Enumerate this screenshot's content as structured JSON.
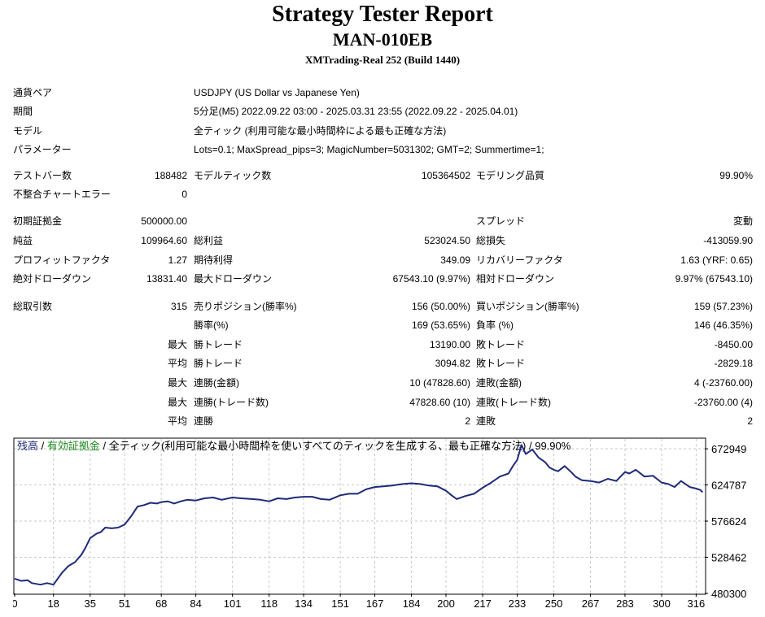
{
  "title": "Strategy Tester Report",
  "expert": "MAN-010EB",
  "build": "XMTrading-Real 252 (Build 1440)",
  "settings": {
    "pair_label": "通貨ペア",
    "pair_value": "USDJPY (US Dollar vs Japanese Yen)",
    "period_label": "期間",
    "period_value": "5分足(M5) 2022.09.22 03:00 - 2025.03.31 23:55 (2022.09.22 - 2025.04.01)",
    "model_label": "モデル",
    "model_value": "全ティック (利用可能な最小時間枠による最も正確な方法)",
    "params_label": "パラメーター",
    "params_value": "Lots=0.1; MaxSpread_pips=3; MagicNumber=5031302; GMT=2; Summertime=1;"
  },
  "stats": {
    "bars_label": "テストバー数",
    "bars": "188482",
    "ticks_label": "モデルティック数",
    "ticks": "105364502",
    "quality_label": "モデリング品質",
    "quality": "99.90%",
    "mismatch_label": "不整合チャートエラー",
    "mismatch": "0",
    "deposit_label": "初期証拠金",
    "deposit": "500000.00",
    "spread_label": "スプレッド",
    "spread": "変動",
    "net_label": "純益",
    "net": "109964.60",
    "gross_profit_label": "総利益",
    "gross_profit": "523024.50",
    "gross_loss_label": "総損失",
    "gross_loss": "-413059.90",
    "pf_label": "プロフィットファクタ",
    "pf": "1.27",
    "expected_label": "期待利得",
    "expected": "349.09",
    "recovery_label": "リカバリーファクタ",
    "recovery": "1.63 (YRF: 0.65)",
    "abs_dd_label": "絶対ドローダウン",
    "abs_dd": "13831.40",
    "max_dd_label": "最大ドローダウン",
    "max_dd": "67543.10 (9.97%)",
    "rel_dd_label": "相対ドローダウン",
    "rel_dd": "9.97% (67543.10)",
    "trades_label": "総取引数",
    "trades": "315",
    "short_label": "売りポジション(勝率%)",
    "short": "156 (50.00%)",
    "long_label": "買いポジション(勝率%)",
    "long": "159 (57.23%)",
    "winrate_label": "勝率(%)",
    "winrate": "169 (53.65%)",
    "lossrate_label": "負率 (%)",
    "lossrate": "146 (46.35%)",
    "max_word": "最大",
    "avg_word": "平均",
    "largest_win_label": "勝トレード",
    "largest_win": "13190.00",
    "largest_loss_label": "敗トレード",
    "largest_loss": "-8450.00",
    "avg_win_label": "勝トレード",
    "avg_win": "3094.82",
    "avg_loss_label": "敗トレード",
    "avg_loss": "-2829.18",
    "cons_win_amt_label": "連勝(金額)",
    "cons_win_amt": "10 (47828.60)",
    "cons_loss_amt_label": "連敗(金額)",
    "cons_loss_amt": "4 (-23760.00)",
    "cons_win_cnt_label": "連勝(トレード数)",
    "cons_win_cnt": "47828.60 (10)",
    "cons_loss_cnt_label": "連敗(トレード数)",
    "cons_loss_cnt": "-23760.00 (4)",
    "avg_cons_win_label": "連勝",
    "avg_cons_win": "2",
    "avg_cons_loss_label": "連敗",
    "avg_cons_loss": "2"
  },
  "chart_data": {
    "type": "line",
    "legend": {
      "balance": "残高",
      "sep1": " / ",
      "equity": "有効証拠金",
      "sep2": " / ",
      "desc": "全ティック(利用可能な最小時間枠を使いすべてのティックを生成する、最も正確な方法) / 99.90%"
    },
    "colors": {
      "line": "#1f2a7a",
      "balance_label": "#1f2a7a",
      "equity_label": "#1a8a1a",
      "grid": "#c8c8c8"
    },
    "x_ticks": [
      0,
      18,
      35,
      51,
      68,
      84,
      101,
      118,
      134,
      151,
      167,
      184,
      200,
      217,
      233,
      250,
      267,
      283,
      300,
      316
    ],
    "y_ticks": [
      480300,
      528462,
      576624,
      624787,
      672949
    ],
    "xlim": [
      0,
      320
    ],
    "ylim": [
      480300,
      686000
    ],
    "grid": true,
    "series": [
      {
        "x": [
          0,
          3,
          6,
          8,
          12,
          15,
          18,
          20,
          22,
          25,
          28,
          31,
          33,
          35,
          38,
          40,
          42,
          45,
          48,
          51,
          54,
          57,
          60,
          63,
          66,
          68,
          71,
          74,
          77,
          80,
          84,
          88,
          92,
          96,
          101,
          105,
          110,
          114,
          118,
          122,
          126,
          130,
          134,
          138,
          142,
          146,
          151,
          155,
          159,
          163,
          167,
          171,
          175,
          180,
          184,
          188,
          192,
          196,
          200,
          203,
          205,
          209,
          213,
          217,
          221,
          225,
          229,
          231,
          233,
          235,
          237,
          240,
          243,
          246,
          248,
          250,
          252,
          255,
          258,
          260,
          263,
          267,
          271,
          275,
          279,
          283,
          285,
          288,
          292,
          296,
          300,
          303,
          306,
          309,
          313,
          316,
          318,
          319
        ],
        "values": [
          500000,
          497000,
          498000,
          494000,
          492000,
          494000,
          492000,
          500000,
          508000,
          517000,
          522000,
          532000,
          542000,
          554000,
          560000,
          562000,
          568000,
          567000,
          568000,
          572000,
          583000,
          596000,
          598000,
          601000,
          600000,
          602000,
          603000,
          600000,
          603000,
          605000,
          604000,
          607000,
          608000,
          605000,
          608000,
          607000,
          606000,
          605000,
          603000,
          607000,
          606000,
          608000,
          609000,
          609000,
          606000,
          605000,
          611000,
          613000,
          613000,
          619000,
          622000,
          623000,
          624000,
          626000,
          627000,
          626000,
          624000,
          623000,
          617000,
          610000,
          606000,
          610000,
          613000,
          621000,
          628000,
          636000,
          640000,
          650000,
          658000,
          678000,
          666000,
          672000,
          661000,
          655000,
          648000,
          645000,
          643000,
          650000,
          642000,
          636000,
          631000,
          630000,
          628000,
          633000,
          630000,
          642000,
          640000,
          645000,
          636000,
          637000,
          628000,
          626000,
          622000,
          630000,
          622000,
          620000,
          618000,
          615000
        ]
      }
    ]
  }
}
